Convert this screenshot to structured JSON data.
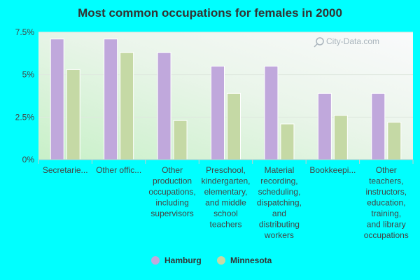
{
  "chart_data": {
    "type": "bar",
    "title": "Most common occupations for females in 2000",
    "categories": [
      "Secretarie...",
      "Other offic...",
      "Other production occupations, including supervisors",
      "Preschool, kindergarten, elementary, and middle school teachers",
      "Material recording, scheduling, dispatching, and distributing workers",
      "Bookkeepi...",
      "Other teachers, instructors, education, training, and library occupations"
    ],
    "category_lines": [
      [
        "Secretarie..."
      ],
      [
        "Other offic..."
      ],
      [
        "Other",
        "production",
        "occupations,",
        "including",
        "supervisors"
      ],
      [
        "Preschool,",
        "kindergarten,",
        "elementary,",
        "and middle",
        "school",
        "teachers"
      ],
      [
        "Material",
        "recording,",
        "scheduling,",
        "dispatching,",
        "and",
        "distributing",
        "workers"
      ],
      [
        "Bookkeepi..."
      ],
      [
        "Other",
        "teachers,",
        "instructors,",
        "education,",
        "training,",
        "and library",
        "occupations"
      ]
    ],
    "series": [
      {
        "name": "Hamburg",
        "color": "#c0a8dc",
        "values": [
          7.1,
          7.1,
          6.3,
          5.5,
          5.5,
          3.9,
          3.9
        ]
      },
      {
        "name": "Minnesota",
        "color": "#c5d9a5",
        "values": [
          5.3,
          6.3,
          2.3,
          3.9,
          2.1,
          2.6,
          2.2
        ]
      }
    ],
    "ylim": [
      0,
      7.5
    ],
    "yticks": [
      {
        "value": 0,
        "label": "0%"
      },
      {
        "value": 2.5,
        "label": "2.5%"
      },
      {
        "value": 5,
        "label": "5%"
      },
      {
        "value": 7.5,
        "label": "7.5%"
      }
    ],
    "grid": true,
    "legend": "bottom-center",
    "watermark": "City-Data.com"
  }
}
